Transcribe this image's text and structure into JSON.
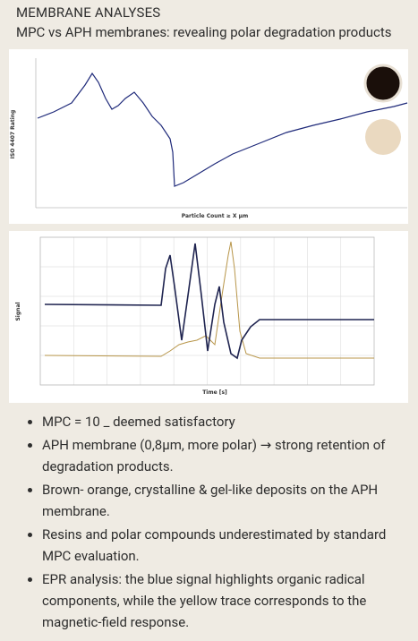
{
  "header": {
    "title": "MEMBRANE ANALYSES",
    "subtitle": "MPC vs APH membranes: revealing polar degradation products"
  },
  "figures": [
    {
      "y_label": "ISO 4407 Rating",
      "x_label": "Particle Count ≥ X µm"
    },
    {
      "y_label": "Signal",
      "x_label": "Time [s]"
    }
  ],
  "bullets": [
    "MPC = 10 _ deemed satisfactory",
    "APH membrane (0,8µm, more polar) → strong retention of degradation products.",
    "Brown- orange, crystalline & gel-like deposits on the APH membrane.",
    "Resins and polar compounds underestimated by standard MPC evaluation.",
    "EPR analysis: the blue signal highlights organic radical components, while the yellow trace corresponds to the magnetic-field response."
  ]
}
